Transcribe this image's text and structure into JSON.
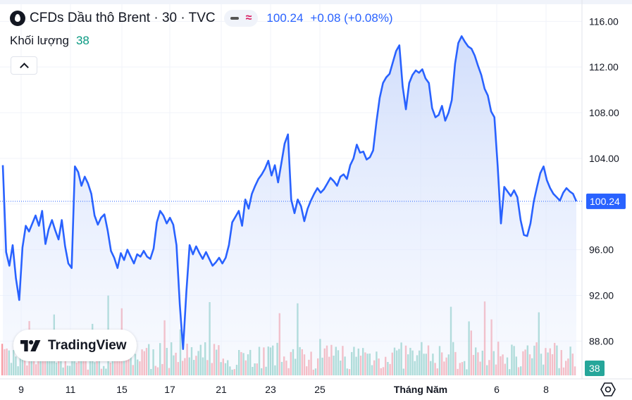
{
  "legend": {
    "symbol": "CFDs Dầu thô Brent · 30 · TVC",
    "price": "100.24",
    "change": "+0.08 (+0.08%)",
    "icon": "oil-drop-icon"
  },
  "volume": {
    "label": "Khối lượng",
    "value": "38"
  },
  "logo": {
    "text": "TradingView"
  },
  "colors": {
    "line": "#2962ff",
    "fill": "#dbe5fc",
    "up_volume": "#089981",
    "down_volume": "#f23645",
    "price_label_bg": "#2962ff",
    "volume_label_bg": "#26a69a"
  },
  "chart_data": {
    "type": "area",
    "ylim": [
      85,
      117.5
    ],
    "y_ticks": [
      "116.00",
      "112.00",
      "108.00",
      "104.00",
      "100.00",
      "96.00",
      "92.00",
      "88.00"
    ],
    "x_ticks": [
      "9",
      "11",
      "15",
      "17",
      "21",
      "23",
      "25",
      "Tháng Năm",
      "6",
      "8"
    ],
    "last_price": 100.24,
    "last_volume": 38,
    "series": [
      {
        "values": [
          103.4,
          95.8,
          94.6,
          96.4,
          93.5,
          91.6,
          96.2,
          98.1,
          97.6,
          98.3,
          99.0,
          98.1,
          99.4,
          96.5,
          97.8,
          98.6,
          97.7,
          96.9,
          98.6,
          96.3,
          94.8,
          94.4,
          103.3,
          102.8,
          101.6,
          102.4,
          101.8,
          100.9,
          99.0,
          98.2,
          98.8,
          99.1,
          97.7,
          95.9,
          95.3,
          94.4,
          95.7,
          95.1,
          96.0,
          95.4,
          94.8,
          95.6,
          95.4,
          95.9,
          95.4,
          95.2,
          96.1,
          98.4,
          99.4,
          99.0,
          98.3,
          98.8,
          98.2,
          96.4,
          91.2,
          87.3,
          92.3,
          96.4,
          95.6,
          96.3,
          95.7,
          95.2,
          95.8,
          95.2,
          94.6,
          94.9,
          95.3,
          94.8,
          95.3,
          96.4,
          98.4,
          98.9,
          99.4,
          98.1,
          100.4,
          99.6,
          100.9,
          101.6,
          102.2,
          102.6,
          103.1,
          103.8,
          102.5,
          103.4,
          101.9,
          103.6,
          105.3,
          106.1,
          100.4,
          99.2,
          100.4,
          99.8,
          98.5,
          99.6,
          100.3,
          100.9,
          101.4,
          101.0,
          101.3,
          101.8,
          102.3,
          102.0,
          101.6,
          102.4,
          102.6,
          102.2,
          103.4,
          104.0,
          105.2,
          104.5,
          104.6,
          103.9,
          104.1,
          104.7,
          107.2,
          109.3,
          110.6,
          111.1,
          111.4,
          112.4,
          113.4,
          113.9,
          110.3,
          108.3,
          110.6,
          111.3,
          111.7,
          111.5,
          111.8,
          111.0,
          110.6,
          108.4,
          107.6,
          107.8,
          108.6,
          107.3,
          108.0,
          109.1,
          112.3,
          114.1,
          114.7,
          114.2,
          113.8,
          113.6,
          113.0,
          112.1,
          111.3,
          110.1,
          109.5,
          108.1,
          107.6,
          103.3,
          98.3,
          101.5,
          101.1,
          100.7,
          101.2,
          100.6,
          98.6,
          97.3,
          97.2,
          98.3,
          100.2,
          101.5,
          102.7,
          103.3,
          102.1,
          101.4,
          100.9,
          100.6,
          100.3,
          101.0,
          101.4,
          101.1,
          100.9,
          100.24
        ]
      }
    ]
  }
}
